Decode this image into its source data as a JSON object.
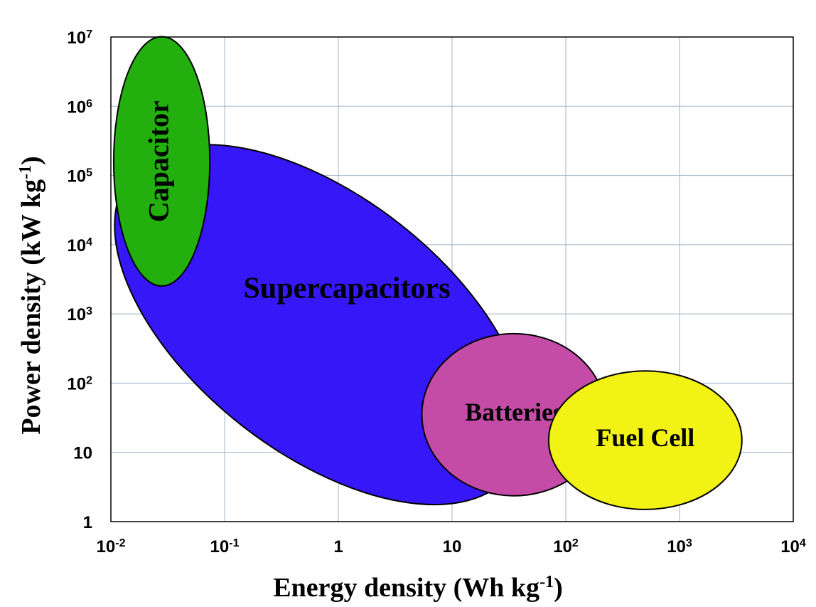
{
  "chart_data": {
    "type": "ragone",
    "x_scale": "log",
    "y_scale": "log",
    "xlim": [
      0.01,
      10000
    ],
    "ylim": [
      1,
      10000000
    ],
    "grid": true,
    "xlabel": {
      "text": "Energy density (Wh kg",
      "sup": "-1",
      "tail": ")"
    },
    "ylabel": {
      "text": "Power density (kW kg",
      "sup": "-1",
      "tail": ")"
    },
    "x_ticks": [
      {
        "value": 0.01,
        "base": "10",
        "sup": "-2"
      },
      {
        "value": 0.1,
        "base": "10",
        "sup": "-1"
      },
      {
        "value": 1,
        "base": "1",
        "sup": ""
      },
      {
        "value": 10,
        "base": "10",
        "sup": ""
      },
      {
        "value": 100,
        "base": "10",
        "sup": "2"
      },
      {
        "value": 1000,
        "base": "10",
        "sup": "3"
      },
      {
        "value": 10000,
        "base": "10",
        "sup": "4"
      }
    ],
    "y_ticks": [
      {
        "value": 1,
        "base": "1",
        "sup": ""
      },
      {
        "value": 10,
        "base": "10",
        "sup": ""
      },
      {
        "value": 100,
        "base": "10",
        "sup": "2"
      },
      {
        "value": 1000,
        "base": "10",
        "sup": "3"
      },
      {
        "value": 10000,
        "base": "10",
        "sup": "4"
      },
      {
        "value": 100000,
        "base": "10",
        "sup": "5"
      },
      {
        "value": 1000000,
        "base": "10",
        "sup": "6"
      },
      {
        "value": 10000000,
        "base": "10",
        "sup": "7"
      }
    ],
    "regions": [
      {
        "name": "Supercapacitors",
        "color": "#3617f8",
        "energy_range": [
          0.02,
          100
        ],
        "power_range": [
          10,
          600000
        ],
        "center": [
          0.7,
          700
        ],
        "rotation_deg": 38,
        "label_at": [
          1,
          3000
        ]
      },
      {
        "name": "Capacitor",
        "color": "#23b00e",
        "energy_range": [
          0.01,
          0.07
        ],
        "power_range": [
          2500,
          10000000
        ],
        "center": [
          0.028,
          160000
        ],
        "rotation_deg": 0,
        "label_vertical": true
      },
      {
        "name": "Batteries",
        "color": "#c44ca7",
        "energy_range": [
          6,
          250
        ],
        "power_range": [
          2.5,
          550
        ],
        "center": [
          35,
          35
        ],
        "rotation_deg": 0
      },
      {
        "name": "Fuel Cell",
        "color": "#f2f214",
        "energy_range": [
          60,
          3000
        ],
        "power_range": [
          1.5,
          150
        ],
        "center": [
          500,
          15
        ],
        "rotation_deg": 0
      }
    ]
  }
}
